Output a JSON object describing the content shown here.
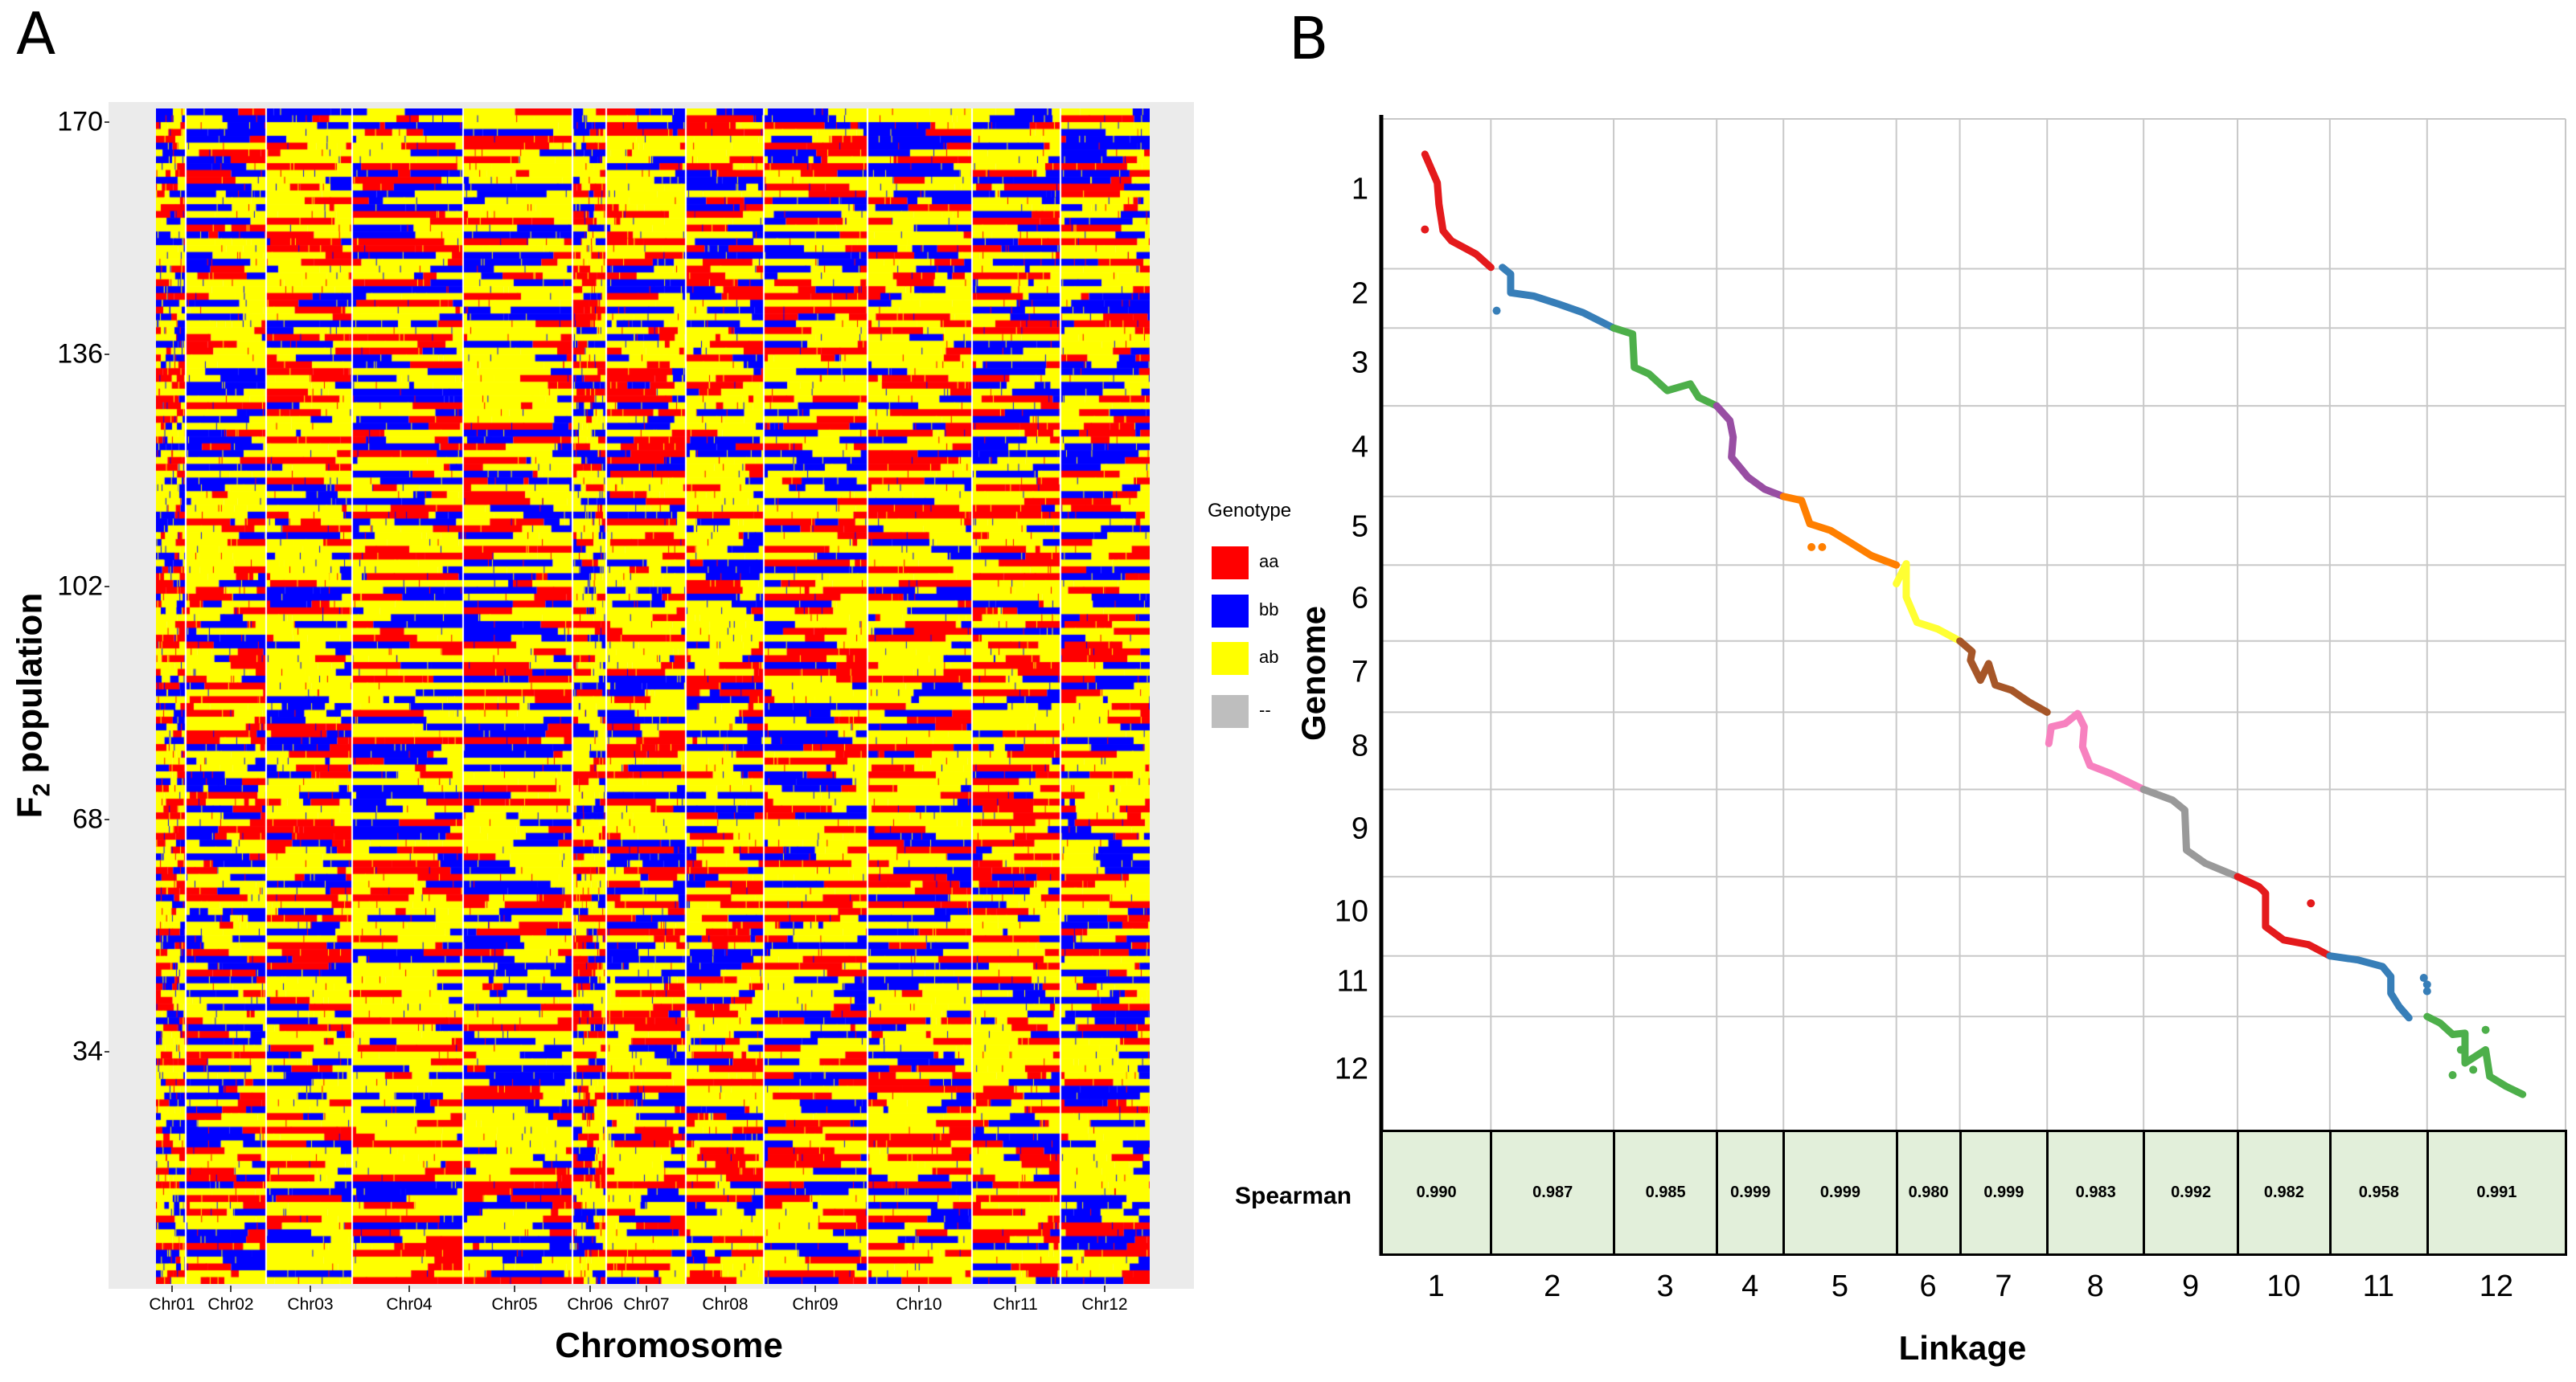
{
  "panels": {
    "a_label": "A",
    "b_label": "B"
  },
  "colors": {
    "aa": "#ff0000",
    "bb": "#0000ff",
    "ab": "#ffff00",
    "missing": "#bebebe",
    "panel_bg": "#ebebeb",
    "table_fill": "#e2efda"
  },
  "chart_data": [
    {
      "type": "heatmap",
      "title": "",
      "xlabel": "Chromosome",
      "ylabel_main": "F",
      "ylabel_sub": "2",
      "ylabel_rest": " population",
      "x_tick_labels": [
        "Chr01",
        "Chr02",
        "Chr03",
        "Chr04",
        "Chr05",
        "Chr06",
        "Chr07",
        "Chr08",
        "Chr09",
        "Chr10",
        "Chr11",
        "Chr12"
      ],
      "y_tick_labels": [
        "170",
        "136",
        "102",
        "68",
        "34"
      ],
      "y_ticks": [
        170,
        136,
        102,
        68,
        34
      ],
      "ylim": [
        0,
        172
      ],
      "n_individuals": 172,
      "legend": {
        "title": "Genotype",
        "placement": "right",
        "entries": [
          {
            "label": "aa",
            "color_key": "aa"
          },
          {
            "label": "bb",
            "color_key": "bb"
          },
          {
            "label": "ab",
            "color_key": "ab"
          },
          {
            "label": "--",
            "color_key": "missing"
          }
        ]
      }
    },
    {
      "type": "scatter",
      "xlabel": "Linkage",
      "ylabel": "Genome",
      "x_tick_labels": [
        "1",
        "2",
        "3",
        "4",
        "5",
        "6",
        "7",
        "8",
        "9",
        "10",
        "11",
        "12"
      ],
      "y_tick_labels": [
        "1",
        "2",
        "3",
        "4",
        "5",
        "6",
        "7",
        "8",
        "9",
        "10",
        "11",
        "12"
      ],
      "x_boundaries": [
        115,
        248,
        397,
        522,
        603,
        740,
        817,
        923,
        1040,
        1154,
        1266,
        1384,
        1552
      ],
      "y_boundaries": [
        22,
        247,
        336,
        453,
        589,
        692,
        806,
        913,
        1029,
        1160,
        1279,
        1370,
        1540
      ],
      "groups": [
        {
          "name": "1",
          "color": "#e41a1c",
          "points": [
            [
              168,
              75
            ],
            [
              175,
              95
            ],
            [
              183,
              118
            ],
            [
              185,
              150
            ],
            [
              190,
              190
            ],
            [
              200,
              205
            ],
            [
              230,
              225
            ],
            [
              248,
              245
            ]
          ],
          "outliers": [
            [
              168,
              188
            ]
          ]
        },
        {
          "name": "2",
          "color": "#377eb8",
          "points": [
            [
              262,
              245
            ],
            [
              272,
              255
            ],
            [
              272,
              283
            ],
            [
              300,
              288
            ],
            [
              330,
              300
            ],
            [
              360,
              313
            ],
            [
              397,
              336
            ]
          ],
          "outliers": [
            [
              255,
              310
            ]
          ]
        },
        {
          "name": "3",
          "color": "#4daf4a",
          "points": [
            [
              397,
              336
            ],
            [
              420,
              345
            ],
            [
              422,
              395
            ],
            [
              440,
              405
            ],
            [
              462,
              430
            ],
            [
              490,
              420
            ],
            [
              500,
              440
            ],
            [
              522,
              453
            ]
          ],
          "outliers": []
        },
        {
          "name": "4",
          "color": "#984ea3",
          "points": [
            [
              522,
              453
            ],
            [
              538,
              475
            ],
            [
              542,
              500
            ],
            [
              540,
              530
            ],
            [
              560,
              560
            ],
            [
              580,
              578
            ],
            [
              603,
              589
            ]
          ],
          "outliers": []
        },
        {
          "name": "5",
          "color": "#ff7f00",
          "points": [
            [
              603,
              589
            ],
            [
              625,
              595
            ],
            [
              635,
              630
            ],
            [
              660,
              640
            ],
            [
              680,
              655
            ],
            [
              710,
              678
            ],
            [
              740,
              692
            ]
          ],
          "outliers": [
            [
              637,
              665
            ],
            [
              650,
              665
            ]
          ]
        },
        {
          "name": "6",
          "color": "#ffff33",
          "points": [
            [
              740,
              720
            ],
            [
              752,
              690
            ],
            [
              752,
              740
            ],
            [
              765,
              778
            ],
            [
              790,
              788
            ],
            [
              817,
              806
            ]
          ],
          "outliers": []
        },
        {
          "name": "7",
          "color": "#a65628",
          "points": [
            [
              817,
              806
            ],
            [
              832,
              822
            ],
            [
              830,
              835
            ],
            [
              842,
              865
            ],
            [
              852,
              840
            ],
            [
              860,
              872
            ],
            [
              880,
              880
            ],
            [
              900,
              897
            ],
            [
              923,
              913
            ]
          ],
          "outliers": []
        },
        {
          "name": "8",
          "color": "#f781bf",
          "points": [
            [
              925,
              960
            ],
            [
              928,
              935
            ],
            [
              945,
              930
            ],
            [
              960,
              915
            ],
            [
              968,
              935
            ],
            [
              966,
              965
            ],
            [
              975,
              993
            ],
            [
              1000,
              1005
            ],
            [
              1040,
              1029
            ]
          ],
          "outliers": []
        },
        {
          "name": "9",
          "color": "#999999",
          "points": [
            [
              1040,
              1029
            ],
            [
              1075,
              1045
            ],
            [
              1090,
              1060
            ],
            [
              1092,
              1120
            ],
            [
              1115,
              1140
            ],
            [
              1154,
              1160
            ]
          ],
          "outliers": []
        },
        {
          "name": "10",
          "color": "#e41a1c",
          "points": [
            [
              1154,
              1160
            ],
            [
              1180,
              1175
            ],
            [
              1188,
              1185
            ],
            [
              1188,
              1235
            ],
            [
              1210,
              1255
            ],
            [
              1240,
              1262
            ],
            [
              1266,
              1279
            ]
          ],
          "outliers": [
            [
              1243,
              1200
            ]
          ]
        },
        {
          "name": "11",
          "color": "#377eb8",
          "points": [
            [
              1266,
              1279
            ],
            [
              1300,
              1285
            ],
            [
              1330,
              1295
            ],
            [
              1340,
              1310
            ],
            [
              1340,
              1335
            ],
            [
              1350,
              1355
            ],
            [
              1362,
              1372
            ]
          ],
          "outliers": [
            [
              1380,
              1312
            ],
            [
              1384,
              1322
            ],
            [
              1384,
              1332
            ]
          ]
        },
        {
          "name": "12",
          "color": "#4daf4a",
          "points": [
            [
              1384,
              1370
            ],
            [
              1400,
              1380
            ],
            [
              1415,
              1397
            ],
            [
              1430,
              1395
            ],
            [
              1430,
              1440
            ],
            [
              1455,
              1420
            ],
            [
              1460,
              1460
            ],
            [
              1480,
              1475
            ],
            [
              1500,
              1487
            ]
          ],
          "outliers": [
            [
              1415,
              1458
            ],
            [
              1455,
              1390
            ],
            [
              1425,
              1420
            ],
            [
              1440,
              1450
            ]
          ]
        }
      ],
      "spearman": {
        "label": "Spearman",
        "values": [
          "0.990",
          "0.987",
          "0.985",
          "0.999",
          "0.999",
          "0.980",
          "0.999",
          "0.983",
          "0.992",
          "0.982",
          "0.958",
          "0.991"
        ]
      }
    }
  ]
}
